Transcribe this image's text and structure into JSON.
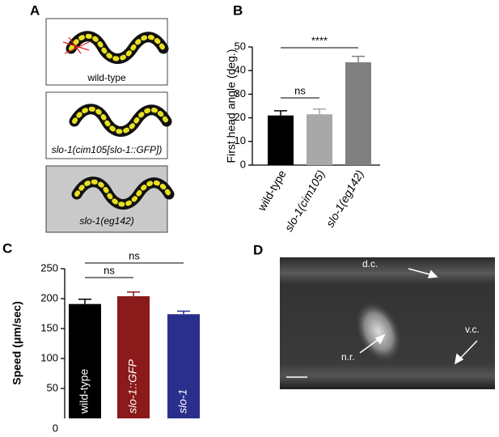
{
  "panel_labels": [
    "A",
    "B",
    "C",
    "D"
  ],
  "worm_images": [
    "wild-type",
    "slo-1(cim105[slo-1::GFP])",
    "slo-1(eg142)"
  ],
  "micrograph_labels": [
    "d.c.",
    "n.r.",
    "v.c."
  ],
  "chart_data": [
    {
      "type": "bar",
      "ylabel": "First head angle (deg.)",
      "categories": [
        "wild-type",
        "slo-1(cim105)",
        "slo-1(eg142)"
      ],
      "values": [
        21,
        21.5,
        43.5
      ],
      "errors": [
        2,
        2.2,
        2.5
      ],
      "colors": [
        "#000000",
        "#a8a8aa",
        "#808080"
      ],
      "ylim": [
        0,
        50
      ],
      "yticks": [
        0,
        10,
        20,
        30,
        40,
        50
      ],
      "significance": [
        {
          "label": "ns",
          "from": 0,
          "to": 1
        },
        {
          "label": "****",
          "from": 0,
          "to": 2
        }
      ]
    },
    {
      "type": "bar",
      "ylabel": "Speed (μm/sec)",
      "categories": [
        "wild-type",
        "slo-1::GFP",
        "slo-1"
      ],
      "values": [
        191,
        204,
        174
      ],
      "errors": [
        8,
        7,
        5
      ],
      "colors": [
        "#000000",
        "#8b1a1a",
        "#2b2f8c"
      ],
      "ylim": [
        0,
        250
      ],
      "yticks": [
        0,
        50,
        100,
        150,
        200,
        250
      ],
      "significance": [
        {
          "label": "ns",
          "from": 0,
          "to": 1
        },
        {
          "label": "ns",
          "from": 0,
          "to": 2
        }
      ]
    }
  ]
}
